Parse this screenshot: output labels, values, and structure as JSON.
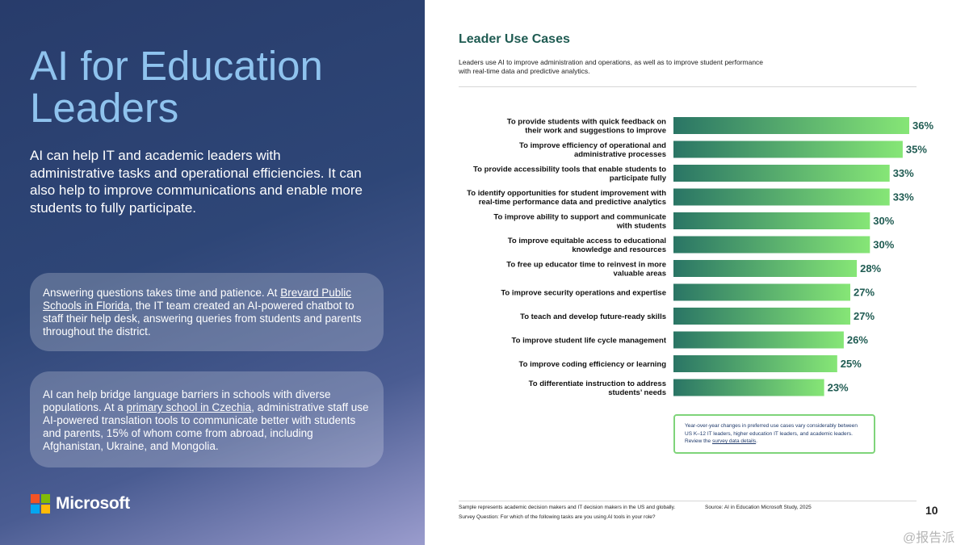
{
  "left": {
    "title": "AI for Education Leaders",
    "intro": "AI can help IT and academic leaders with administrative tasks and operational efficiencies. It can also help to improve communications and enable more students to fully participate.",
    "card1": {
      "pre": "Answering questions takes time and patience. At ",
      "link": "Brevard Public Schools in Florida",
      "post": ", the IT team created an AI-powered chatbot to staff their help desk, answering queries from students and parents throughout the district."
    },
    "card2": {
      "pre": "AI can help bridge language barriers in schools with diverse populations. At a ",
      "link": "primary school in Czechia",
      "post": ", administrative staff use AI-powered translation tools to communicate better with students and parents, 15% of whom come from abroad, including Afghanistan, Ukraine, and Mongolia."
    },
    "brand": "Microsoft",
    "brand_colors": [
      "#f35325",
      "#81bc06",
      "#05a6f0",
      "#ffba08"
    ]
  },
  "right": {
    "title": "Leader Use Cases",
    "subtitle": "Leaders use AI to improve administration and operations, as well as to improve student performance with real-time data and predictive analytics.",
    "note": {
      "pre": "Year-over-year changes in preferred use cases vary considerably between US K–12 IT leaders, higher education IT leaders, and academic leaders. Review the ",
      "link": "survey data details",
      "post": "."
    },
    "footer_sample": "Sample represents academic decision makers and IT decision makers in the US and globally.",
    "footer_source": "Source: AI in Education Microsoft Study, 2025",
    "footer_question": "Survey Question: For which of the following tasks are you using AI tools in your role?",
    "page_number": "10",
    "watermark": "@报告派"
  },
  "chart_data": {
    "type": "bar",
    "orientation": "horizontal",
    "categories": [
      [
        "To provide students with quick feedback on",
        "their work and suggestions to improve"
      ],
      [
        "To improve efficiency of operational and",
        "administrative processes"
      ],
      [
        "To provide accessibility tools that enable students to",
        "participate fully"
      ],
      [
        "To identify opportunities for student improvement with",
        "real-time performance data and predictive analytics"
      ],
      [
        "To improve ability to support and communicate",
        "with students"
      ],
      [
        "To improve equitable access to educational",
        "knowledge and resources"
      ],
      [
        "To free up educator time to reinvest in more",
        "valuable areas"
      ],
      [
        "To improve security operations and expertise"
      ],
      [
        "To teach and develop future-ready skills"
      ],
      [
        "To improve student life cycle management"
      ],
      [
        "To improve coding efficiency or learning"
      ],
      [
        "To differentiate instruction to address",
        "students’ needs"
      ]
    ],
    "values": [
      36,
      35,
      33,
      33,
      30,
      30,
      28,
      27,
      27,
      26,
      25,
      23
    ],
    "labels": [
      "36%",
      "35%",
      "33%",
      "33%",
      "30%",
      "30%",
      "28%",
      "27%",
      "27%",
      "26%",
      "25%",
      "23%"
    ],
    "xlim": [
      0,
      36
    ],
    "colors": {
      "bar_start": "#2a7565",
      "bar_end": "#86e676",
      "label": "#1f5b52"
    }
  }
}
